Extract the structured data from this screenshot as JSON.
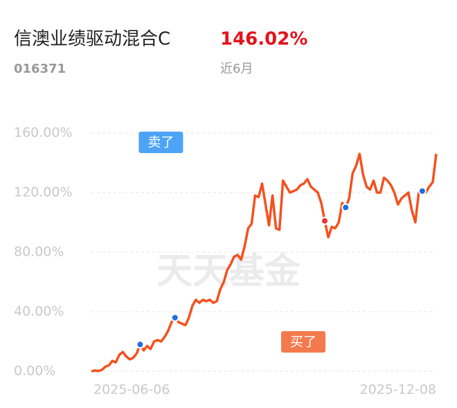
{
  "chart_data": {
    "type": "line",
    "title": "信澳业绩驱动混合C",
    "code": "016371",
    "headline": {
      "value": 146.02,
      "label": "146.02%"
    },
    "period": "近6月",
    "watermark": "天天基金",
    "color": "#f4511e",
    "categories": [
      "2025-06-06",
      null,
      null,
      null,
      null,
      null,
      null,
      null,
      null,
      null,
      null,
      null,
      null,
      null,
      null,
      null,
      null,
      null,
      null,
      null,
      null,
      null,
      null,
      null,
      null,
      null,
      null,
      null,
      null,
      null,
      null,
      null,
      null,
      null,
      null,
      null,
      null,
      null,
      null,
      null,
      null,
      null,
      null,
      null,
      null,
      null,
      null,
      null,
      null,
      null,
      null,
      null,
      null,
      null,
      null,
      null,
      null,
      null,
      null,
      null,
      null,
      null,
      null,
      null,
      null,
      null,
      null,
      null,
      null,
      null,
      null,
      null,
      null,
      null,
      null,
      null,
      null,
      null,
      null,
      null,
      null,
      null,
      null,
      null,
      null,
      null,
      null,
      null,
      null,
      null,
      null,
      null,
      null,
      null,
      null,
      null,
      null,
      null,
      null,
      "2025-12-08"
    ],
    "values": [
      0,
      0.5,
      0.2,
      1,
      3,
      4,
      7,
      6,
      11,
      13,
      10,
      8,
      9,
      12,
      18,
      14,
      17,
      15,
      20,
      21,
      20,
      23,
      27,
      33,
      36,
      33,
      32,
      31,
      36,
      44,
      48,
      46,
      48,
      47,
      48,
      46,
      47,
      55,
      60,
      68,
      72,
      77,
      78,
      75,
      84,
      96,
      99,
      118,
      117,
      126,
      112,
      98,
      118,
      96,
      95,
      128,
      124,
      120,
      121,
      122,
      125,
      126,
      129,
      124,
      122,
      120,
      113,
      101,
      90,
      97,
      96,
      100,
      113,
      110,
      116,
      133,
      138,
      146,
      132,
      124,
      122,
      128,
      120,
      120,
      130,
      128,
      125,
      120,
      112,
      116,
      118,
      120,
      108,
      100,
      120,
      121,
      120,
      124,
      127,
      146.02
    ],
    "ylim": [
      0,
      160
    ],
    "yticks": [
      {
        "value": 0,
        "label": "0.00%"
      },
      {
        "value": 40,
        "label": "40.00%"
      },
      {
        "value": 80,
        "label": "80.00%"
      },
      {
        "value": 120,
        "label": "120.00%"
      },
      {
        "value": 160,
        "label": "160.00%"
      }
    ],
    "grid": true,
    "trades": [
      {
        "label": "卖了",
        "index": 14,
        "color": "#4da3f5",
        "dot": "#1e6fd9"
      },
      {
        "label": "买了",
        "index": 67,
        "color": "#f47a4e",
        "dot": "#e53935"
      }
    ],
    "points": [
      24,
      73,
      95
    ],
    "point_color": "#1e6fd9"
  }
}
